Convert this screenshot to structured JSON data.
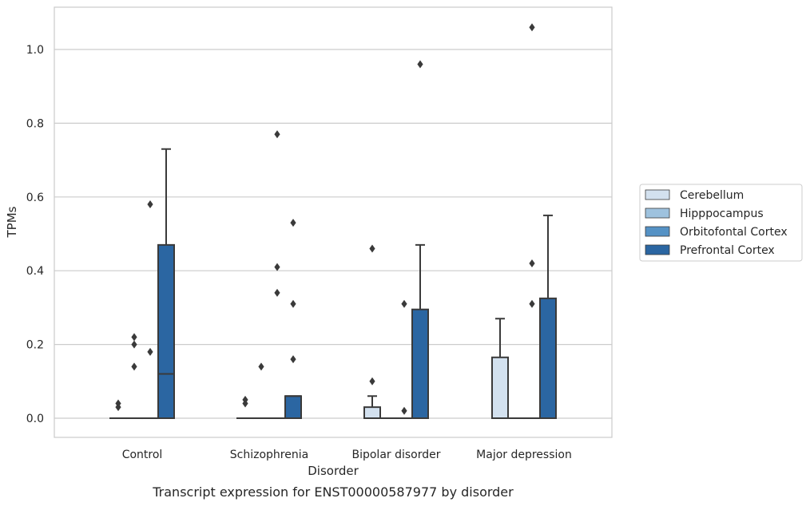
{
  "chart_data": {
    "type": "box",
    "caption": "Transcript expression for ENST00000587977 by disorder",
    "xlabel": "Disorder",
    "ylabel": "TPMs",
    "ylim": [
      -0.05,
      1.12
    ],
    "yticks": [
      "0.0",
      "0.2",
      "0.4",
      "0.6",
      "0.8",
      "1.0"
    ],
    "grid": "horizontal",
    "legend_position": "right",
    "categories": [
      "Control",
      "Schizophrenia",
      "Bipolar disorder",
      "Major depression"
    ],
    "series": [
      {
        "name": "Cerebellum",
        "color": "#d3e1ef",
        "boxes": [
          {
            "q1": 0,
            "median": 0,
            "q3": 0,
            "whislo": 0,
            "whishi": 0,
            "fliers": [
              0.03,
              0.04
            ]
          },
          {
            "q1": 0,
            "median": 0,
            "q3": 0,
            "whislo": 0,
            "whishi": 0,
            "fliers": [
              0.04,
              0.05
            ]
          },
          {
            "q1": 0,
            "median": 0,
            "q3": 0.03,
            "whislo": 0,
            "whishi": 0.06,
            "fliers": [
              0.1,
              0.46
            ]
          },
          {
            "q1": 0,
            "median": 0,
            "q3": 0.165,
            "whislo": 0,
            "whishi": 0.27,
            "fliers": []
          }
        ]
      },
      {
        "name": "Hipppocampus",
        "color": "#9ec2de",
        "boxes": [
          {
            "q1": 0,
            "median": 0,
            "q3": 0,
            "whislo": 0,
            "whishi": 0,
            "fliers": [
              0.14,
              0.2,
              0.22
            ]
          },
          {
            "q1": 0,
            "median": 0,
            "q3": 0,
            "whislo": 0,
            "whishi": 0,
            "fliers": [
              0.14
            ]
          },
          {
            "q1": 0,
            "median": 0,
            "q3": 0,
            "whislo": 0,
            "whishi": 0,
            "fliers": []
          },
          {
            "q1": 0,
            "median": 0,
            "q3": 0,
            "whislo": 0,
            "whishi": 0,
            "fliers": []
          }
        ]
      },
      {
        "name": "Orbitofontal Cortex",
        "color": "#5592c5",
        "boxes": [
          {
            "q1": 0,
            "median": 0,
            "q3": 0,
            "whislo": 0,
            "whishi": 0,
            "fliers": [
              0.18,
              0.58
            ]
          },
          {
            "q1": 0,
            "median": 0,
            "q3": 0,
            "whislo": 0,
            "whishi": 0,
            "fliers": [
              0.34,
              0.41,
              0.77
            ]
          },
          {
            "q1": 0,
            "median": 0,
            "q3": 0,
            "whislo": 0,
            "whishi": 0,
            "fliers": [
              0.02,
              0.31
            ]
          },
          {
            "q1": 0,
            "median": 0,
            "q3": 0,
            "whislo": 0,
            "whishi": 0,
            "fliers": [
              0.31,
              0.42,
              1.06
            ]
          }
        ]
      },
      {
        "name": "Prefrontal Cortex",
        "color": "#2b66a2",
        "boxes": [
          {
            "q1": 0,
            "median": 0.12,
            "q3": 0.47,
            "whislo": 0,
            "whishi": 0.73,
            "fliers": []
          },
          {
            "q1": 0,
            "median": 0.06,
            "q3": 0.06,
            "whislo": 0,
            "whishi": 0.06,
            "fliers": [
              0.16,
              0.31,
              0.53
            ]
          },
          {
            "q1": 0,
            "median": 0,
            "q3": 0.295,
            "whislo": 0,
            "whishi": 0.47,
            "fliers": [
              0.96
            ]
          },
          {
            "q1": 0,
            "median": 0,
            "q3": 0.325,
            "whislo": 0,
            "whishi": 0.55,
            "fliers": []
          }
        ]
      }
    ]
  }
}
